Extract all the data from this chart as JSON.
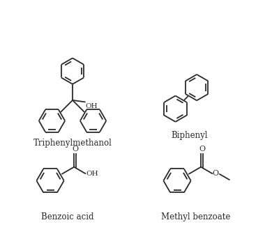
{
  "bg_color": "#ffffff",
  "line_color": "#2a2a2a",
  "text_color": "#2a2a2a",
  "lw": 1.3,
  "figsize": [
    3.9,
    3.36
  ],
  "dpi": 100,
  "labels": [
    "Triphenylmethanol",
    "Biphenyl",
    "Benzoic acid",
    "Methyl benzoate"
  ],
  "label_fontsize": 8.5,
  "hex_r": 0.38
}
